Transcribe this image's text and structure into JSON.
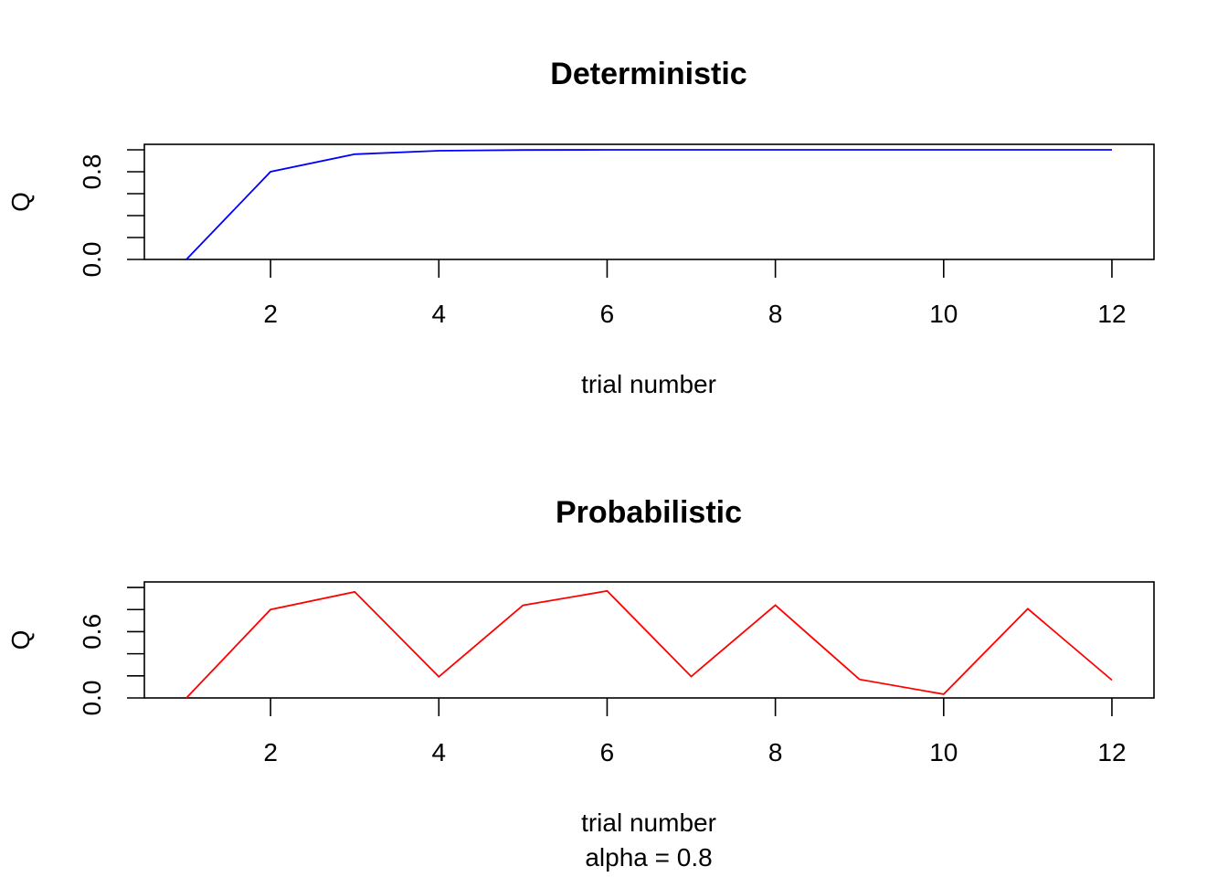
{
  "chart_data": [
    {
      "type": "line",
      "title": "Deterministic",
      "xlabel": "trial number",
      "ylabel": "Q",
      "xlim": [
        0.5,
        12.5
      ],
      "ylim": [
        0,
        1.05
      ],
      "x_ticks": [
        2,
        4,
        6,
        8,
        10,
        12
      ],
      "x_tick_labels": [
        "2",
        "4",
        "6",
        "8",
        "10",
        "12"
      ],
      "y_ticks": [
        0,
        0.2,
        0.4,
        0.6,
        0.8,
        1.0
      ],
      "y_tick_labels": [
        "0.0",
        "",
        "",
        "",
        "0.8",
        ""
      ],
      "grid": false,
      "color": "#0000ff",
      "x": [
        1,
        2,
        3,
        4,
        5,
        6,
        7,
        8,
        9,
        10,
        11,
        12
      ],
      "series": [
        {
          "values": [
            0.0,
            0.8,
            0.96,
            0.992,
            0.998,
            1.0,
            1.0,
            1.0,
            1.0,
            1.0,
            1.0,
            1.0
          ]
        }
      ]
    },
    {
      "type": "line",
      "title": "Probabilistic",
      "xlabel": "trial number",
      "xlabel2": "alpha = 0.8",
      "ylabel": "Q",
      "xlim": [
        0.5,
        12.5
      ],
      "ylim": [
        0,
        1.05
      ],
      "x_ticks": [
        2,
        4,
        6,
        8,
        10,
        12
      ],
      "x_tick_labels": [
        "2",
        "4",
        "6",
        "8",
        "10",
        "12"
      ],
      "y_ticks": [
        0,
        0.2,
        0.4,
        0.6,
        0.8,
        1.0
      ],
      "y_tick_labels": [
        "0.0",
        "",
        "",
        "0.6",
        "",
        ""
      ],
      "grid": false,
      "color": "#ff0000",
      "x": [
        1,
        2,
        3,
        4,
        5,
        6,
        7,
        8,
        9,
        10,
        11,
        12
      ],
      "series": [
        {
          "values": [
            0.0,
            0.8,
            0.96,
            0.192,
            0.838,
            0.968,
            0.194,
            0.839,
            0.168,
            0.034,
            0.807,
            0.161
          ]
        }
      ]
    }
  ]
}
